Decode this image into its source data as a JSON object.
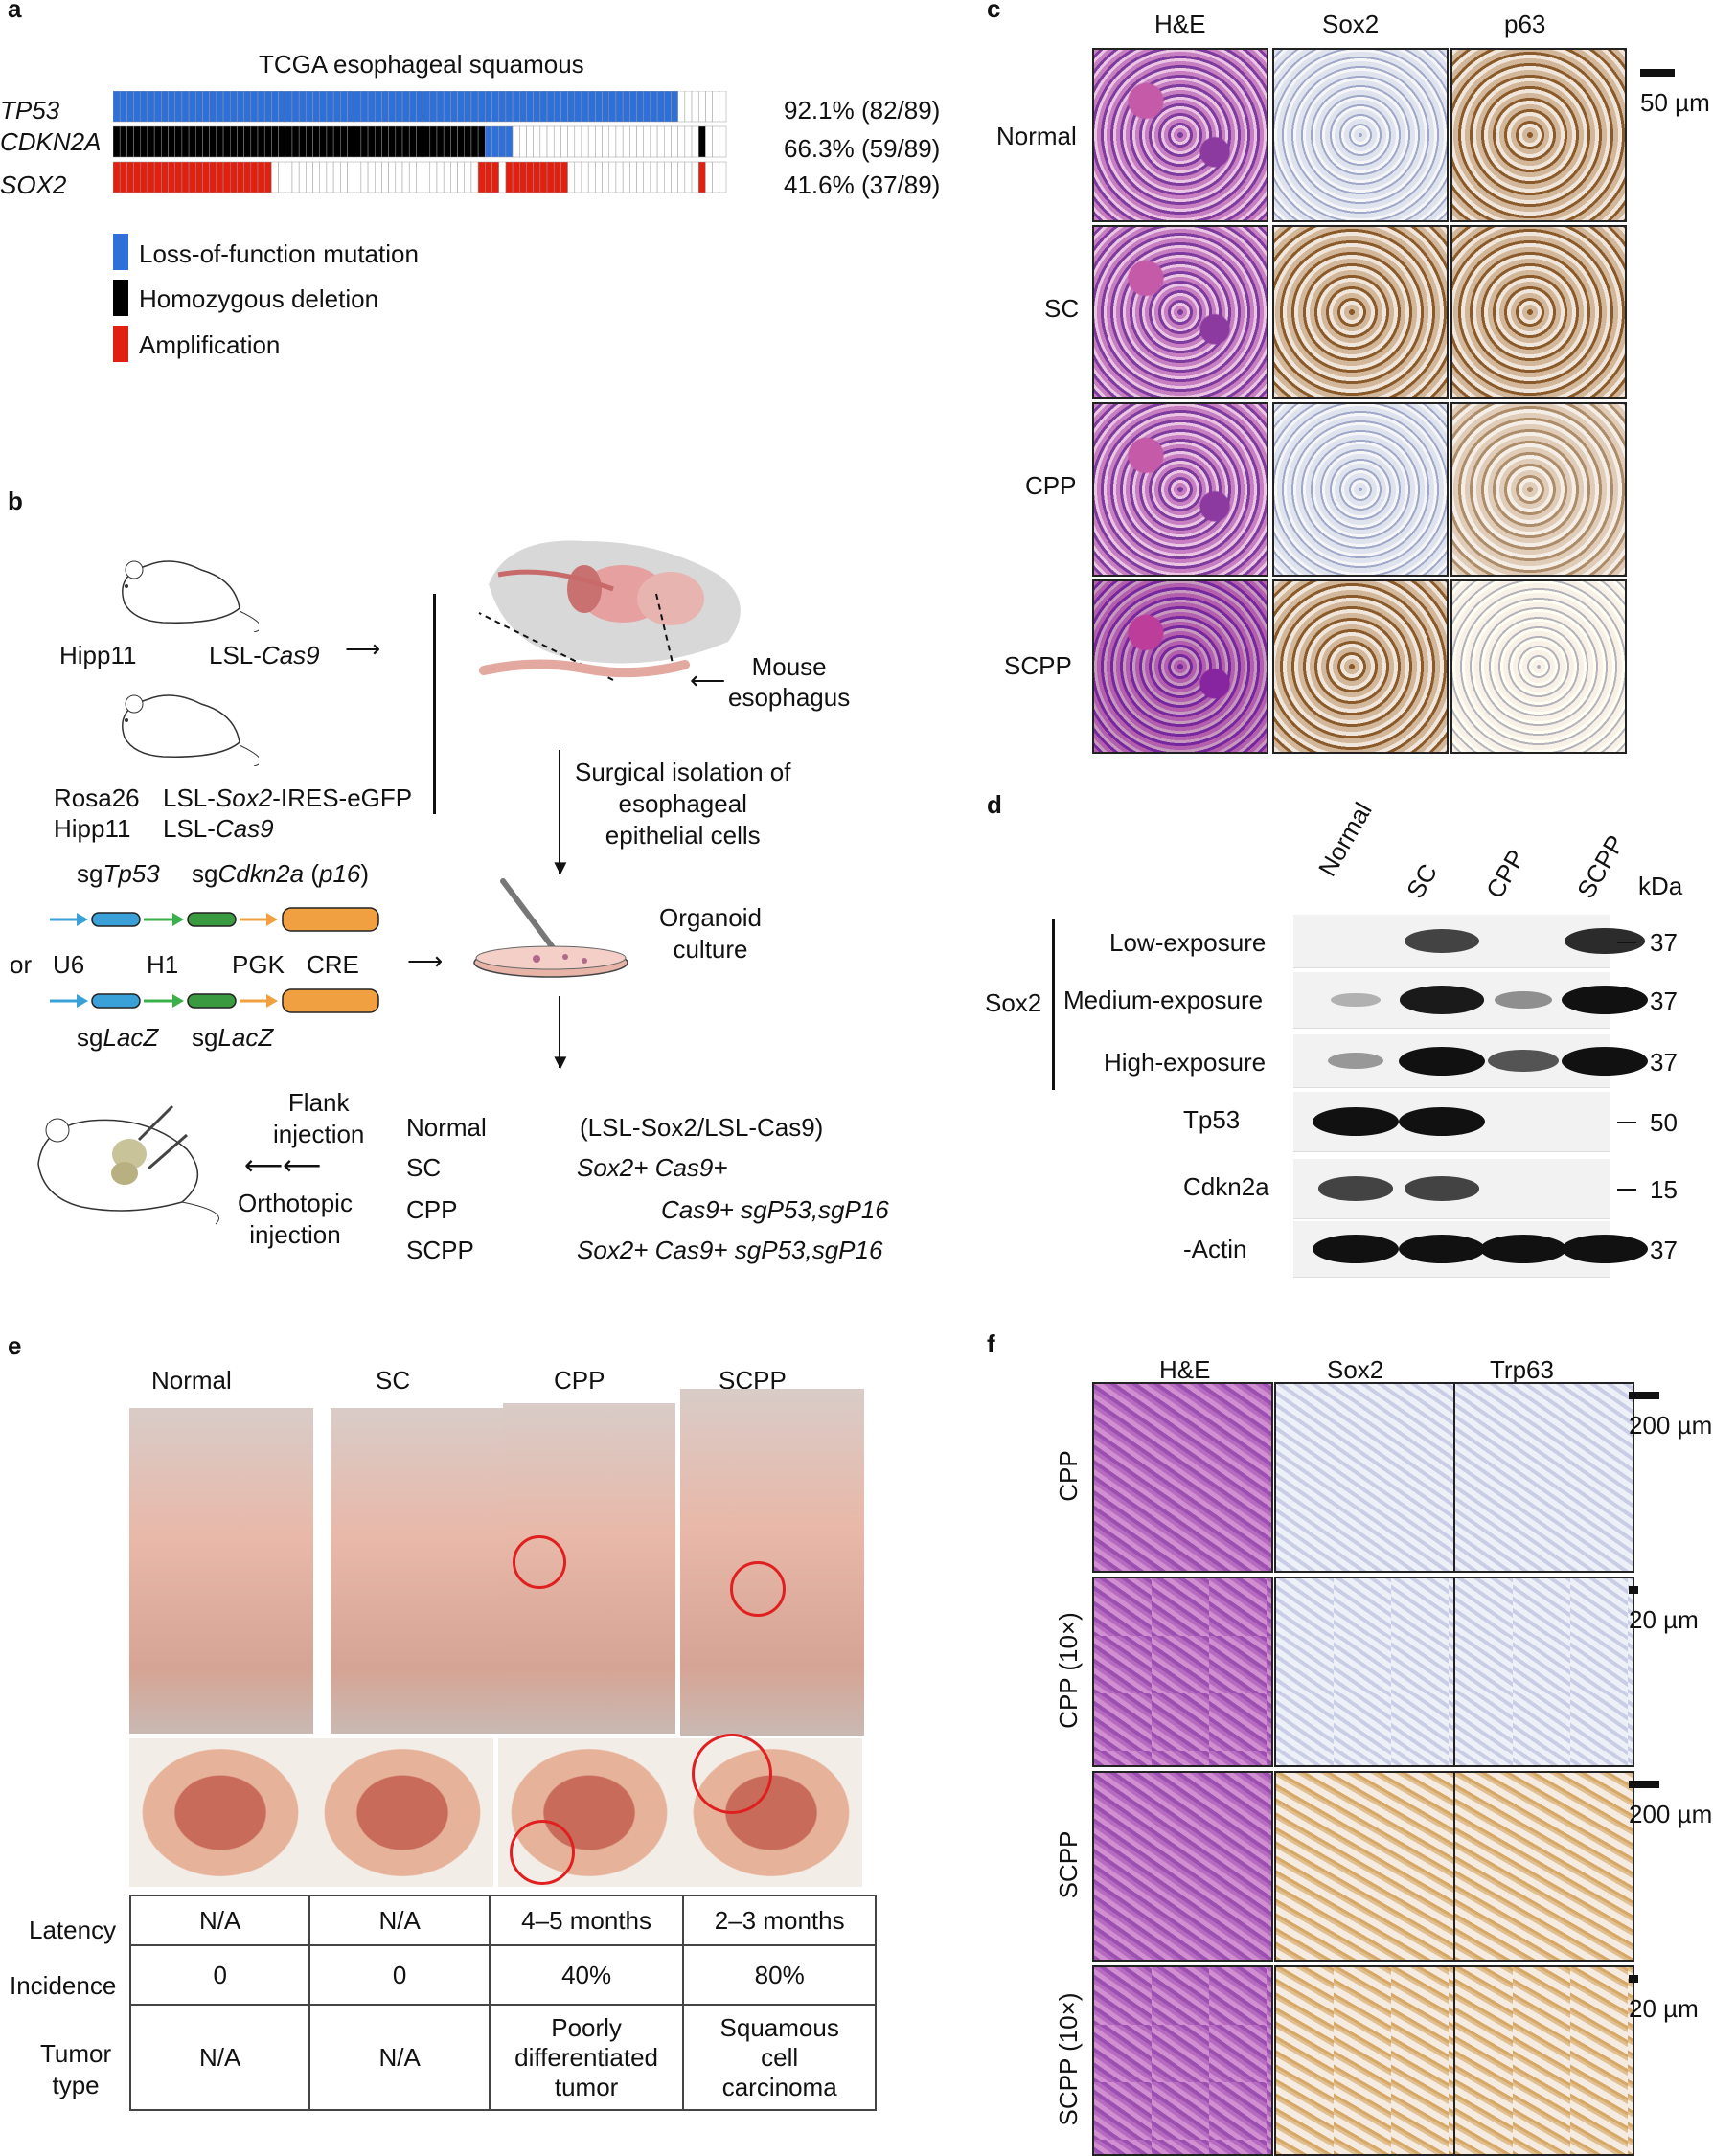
{
  "panel_a": {
    "label": "a",
    "title": "TCGA esophageal squamous",
    "genes": [
      {
        "name": "TP53",
        "pct": "92.1% (82/89)"
      },
      {
        "name": "CDKN2A",
        "pct": "66.3% (59/89)"
      },
      {
        "name": "SOX2",
        "pct": "41.6% (37/89)"
      }
    ],
    "legend": [
      {
        "label": "Loss-of-function mutation",
        "color": "#2f6fd8"
      },
      {
        "label": "Homozygous deletion",
        "color": "#000000"
      },
      {
        "label": "Amplification",
        "color": "#e02010"
      }
    ]
  },
  "panel_b": {
    "label": "b",
    "mouse1_left": "Hipp11",
    "mouse1_right_prefix": "LSL-",
    "mouse1_right_it": "Cas9",
    "mouse2_line1_left": "Rosa26",
    "mouse2_line1_right_prefix": "LSL-",
    "mouse2_line1_right_it": "Sox2",
    "mouse2_line1_right_suffix": "-IRES-eGFP",
    "mouse2_line2_left": "Hipp11",
    "mouse2_line2_right_prefix": "LSL-",
    "mouse2_line2_right_it": "Cas9",
    "sg_tp53_prefix": "sg",
    "sg_tp53_it": "Tp53",
    "sg_cdkn2a_prefix": "sg",
    "sg_cdkn2a_it": "Cdkn2a",
    "sg_cdkn2a_paren_open": " (",
    "sg_cdkn2a_paren_it": "p16",
    "sg_cdkn2a_paren_close": ")",
    "or": "or",
    "promoters": [
      "U6",
      "H1",
      "PGK",
      "CRE"
    ],
    "sg_lacz1_prefix": "sg",
    "sg_lacz1_it": "LacZ",
    "sg_lacz2_prefix": "sg",
    "sg_lacz2_it": "LacZ",
    "mouse_esophagus": "Mouse\nesophagus",
    "surgical": "Surgical isolation of\nesophageal\nepithelial cells",
    "organoid": "Organoid\nculture",
    "flank": "Flank\ninjection",
    "orthotopic": "Orthotopic\ninjection",
    "groups": [
      "Normal",
      "SC",
      "CPP",
      "SCPP"
    ],
    "normal_geno": "(LSL-Sox2/LSL-Cas9)",
    "sc_geno": "Sox2+ Cas9+",
    "cpp_geno": "Cas9+ sgP53,sgP16",
    "scpp_geno": "Sox2+ Cas9+ sgP53,sgP16"
  },
  "panel_c": {
    "label": "c",
    "columns": [
      "H&E",
      "Sox2",
      "p63"
    ],
    "rows": [
      "Normal",
      "SC",
      "CPP",
      "SCPP"
    ],
    "scale": "50 µm"
  },
  "panel_d": {
    "label": "d",
    "lanes": [
      "Normal",
      "SC",
      "CPP",
      "SCPP"
    ],
    "kda": "kDa",
    "sox2": "Sox2",
    "rows": [
      {
        "name": "Low-exposure",
        "mw": "37",
        "intensity": [
          0,
          0.7,
          0,
          0.85
        ]
      },
      {
        "name": "Medium-exposure",
        "mw": "37",
        "intensity": [
          0.05,
          0.95,
          0.25,
          1
        ]
      },
      {
        "name": "High-exposure",
        "mw": "37",
        "intensity": [
          0.2,
          1,
          0.6,
          1
        ]
      },
      {
        "name": "Tp53",
        "mw": "50",
        "intensity": [
          1,
          1,
          0,
          0
        ]
      },
      {
        "name": "Cdkn2a",
        "mw": "15",
        "intensity": [
          0.7,
          0.7,
          0,
          0
        ]
      },
      {
        "name": "-Actin",
        "mw": "37",
        "intensity": [
          1,
          1,
          1,
          1
        ]
      }
    ]
  },
  "panel_e": {
    "label": "e",
    "groups": [
      "Normal",
      "SC",
      "CPP",
      "SCPP"
    ],
    "table": {
      "rows": [
        {
          "label": "Latency",
          "values": [
            "N/A",
            "N/A",
            "4–5 months",
            "2–3 months"
          ]
        },
        {
          "label": "Incidence",
          "values": [
            "0",
            "0",
            "40%",
            "80%"
          ]
        },
        {
          "label": "Tumor\ntype",
          "values": [
            "N/A",
            "N/A",
            "Poorly\ndifferentiated\ntumor",
            "Squamous\ncell\ncarcinoma"
          ]
        }
      ]
    }
  },
  "panel_f": {
    "label": "f",
    "columns": [
      "H&E",
      "Sox2",
      "Trp63"
    ],
    "rows": [
      "CPP",
      "CPP (10×)",
      "SCPP",
      "SCPP (10×)"
    ],
    "scales": [
      "200 µm",
      "20 µm",
      "200 µm",
      "20 µm"
    ]
  }
}
